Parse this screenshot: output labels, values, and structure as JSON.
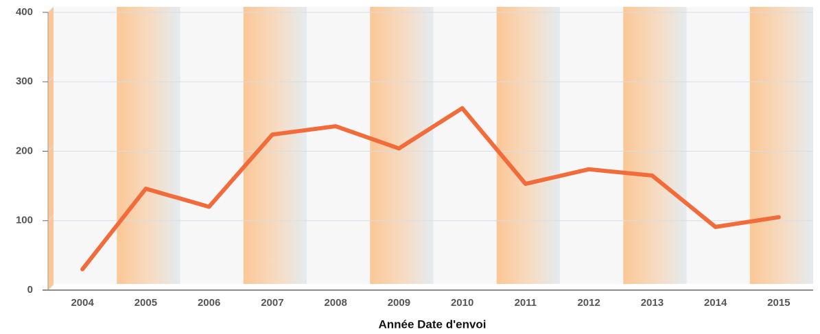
{
  "chart_data": {
    "type": "line",
    "x_label": "Année Date d'envoi",
    "categories": [
      "2004",
      "2005",
      "2006",
      "2007",
      "2008",
      "2009",
      "2010",
      "2011",
      "2012",
      "2013",
      "2014",
      "2015"
    ],
    "values": [
      30,
      146,
      120,
      224,
      236,
      204,
      262,
      153,
      174,
      165,
      91,
      105
    ],
    "color": "#f26b3a",
    "ylim": [
      0,
      400
    ],
    "yticks": [
      0,
      100,
      200,
      300,
      400
    ],
    "grid": true
  }
}
